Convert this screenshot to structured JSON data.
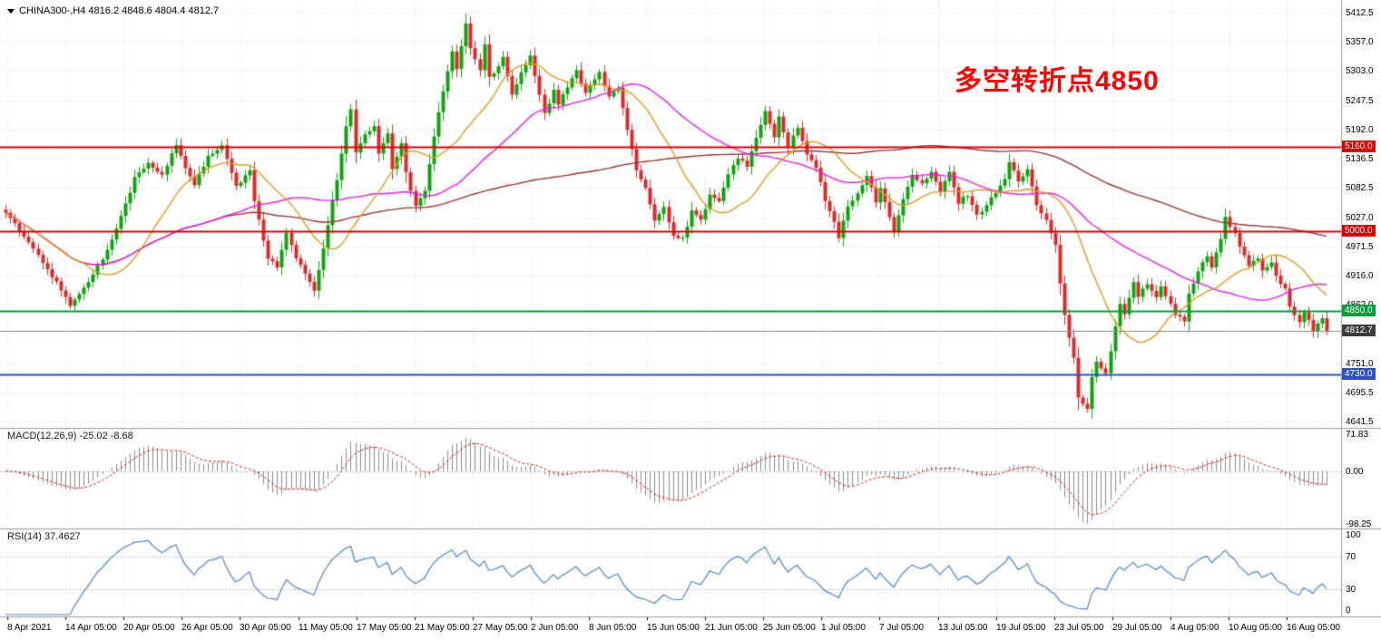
{
  "header": {
    "symbol_line": "CHINA300-,H4 4816.2 4848.6 4804.4 4812.7",
    "symbol": "CHINA300-",
    "timeframe": "H4",
    "open": "4816.2",
    "high": "4848.6",
    "low": "4804.4",
    "close": "4812.7"
  },
  "annotation": {
    "text": "多空转折点4850",
    "color": "#FF0000"
  },
  "price_axis": {
    "ticks": [
      "5412.5",
      "5357.0",
      "5303.0",
      "5247.5",
      "5192.0",
      "5136.5",
      "5082.5",
      "5027.0",
      "4971.5",
      "4916.0",
      "4862.0",
      "4751.0",
      "4695.5",
      "4641.5"
    ],
    "grid_values": [
      5412.5,
      5357.0,
      5303.0,
      5247.5,
      5192.0,
      5136.5,
      5082.5,
      5027.0,
      4971.5,
      4916.0,
      4862.0,
      4806.5,
      4751.0,
      4695.5,
      4641.5
    ],
    "badges": [
      {
        "label": "5160.0",
        "value": 5160.0,
        "bg": "#DE0000"
      },
      {
        "label": "5000.0",
        "value": 5000.0,
        "bg": "#DE0000"
      },
      {
        "label": "4850.0",
        "value": 4850.0,
        "bg": "#00A03C"
      },
      {
        "label": "4812.7",
        "value": 4812.7,
        "bg": "#3C3C3C"
      },
      {
        "label": "4730.0",
        "value": 4730.0,
        "bg": "#2A52C8"
      }
    ]
  },
  "levels": [
    {
      "value": 5160.0,
      "color": "#DE0000",
      "width": 2
    },
    {
      "value": 5000.0,
      "color": "#DE0000",
      "width": 2
    },
    {
      "value": 4850.0,
      "color": "#00A03C",
      "width": 2
    },
    {
      "value": 4730.0,
      "color": "#2A52C8",
      "width": 2
    }
  ],
  "current_price": {
    "value": 4812.7,
    "line_color": "#8A8A8A"
  },
  "time_axis": {
    "labels": [
      "8 Apr 2021",
      "14 Apr 05:00",
      "20 Apr 05:00",
      "26 Apr 05:00",
      "30 Apr 05:00",
      "11 May 05:00",
      "17 May 05:00",
      "21 May 05:00",
      "27 May 05:00",
      "2 Jun 05:00",
      "8 Jun 05:00",
      "15 Jun 05:00",
      "21 Jun 05:00",
      "25 Jun 05:00",
      "1 Jul 05:00",
      "7 Jul 05:00",
      "13 Jul 05:00",
      "19 Jul 05:00",
      "23 Jul 05:00",
      "29 Jul 05:00",
      "4 Aug 05:00",
      "10 Aug 05:00",
      "16 Aug 05:00"
    ]
  },
  "macd_panel": {
    "label": "MACD(12,26,9) -25.02 -8.68",
    "name": "MACD",
    "params": "12,26,9",
    "main_value": -25.02,
    "signal_value": -8.68,
    "ticks": [
      "71.83",
      "0.00",
      "-98.25"
    ],
    "tick_values": [
      71.83,
      0.0,
      -98.25
    ],
    "histogram_color": "#8C8C8C",
    "signal_color": "#CC2222"
  },
  "rsi_panel": {
    "label": "RSI(14) 37.4627",
    "name": "RSI",
    "period": 14,
    "value": 37.4627,
    "ticks": [
      "100",
      "70",
      "30",
      "0"
    ],
    "tick_values": [
      100,
      70,
      30,
      0
    ],
    "level_lines": [
      70,
      30
    ],
    "line_color": "#4C86C8"
  },
  "chart_data": {
    "type": "candlestick",
    "symbol": "CHINA300-",
    "timeframe": "H4",
    "title": "CHINA300- H4 candlestick chart with MACD(12,26,9) and RSI(14) panels",
    "x_start": "8 Apr 2021",
    "x_end": "17 Aug 2021",
    "price_axis_range": [
      4641.5,
      5412.5
    ],
    "last_ohlc": {
      "open": 4816.2,
      "high": 4848.6,
      "low": 4804.4,
      "close": 4812.7
    },
    "up_color": "#0FA50F",
    "down_color": "#DE2A2A",
    "horizontal_levels": [
      5160.0,
      5000.0,
      4850.0,
      4730.0
    ],
    "close_keypoints": [
      [
        0,
        5035
      ],
      [
        4,
        4990
      ],
      [
        9,
        4930
      ],
      [
        14,
        4862
      ],
      [
        17,
        4892
      ],
      [
        21,
        4948
      ],
      [
        25,
        5028
      ],
      [
        28,
        5100
      ],
      [
        31,
        5128
      ],
      [
        34,
        5105
      ],
      [
        37,
        5165
      ],
      [
        39,
        5120
      ],
      [
        41,
        5090
      ],
      [
        44,
        5140
      ],
      [
        47,
        5160
      ],
      [
        50,
        5085
      ],
      [
        53,
        5112
      ],
      [
        54,
        5058
      ],
      [
        57,
        4950
      ],
      [
        59,
        4935
      ],
      [
        61,
        4995
      ],
      [
        63,
        4950
      ],
      [
        65,
        4920
      ],
      [
        67,
        4885
      ],
      [
        68,
        4928
      ],
      [
        70,
        5012
      ],
      [
        72,
        5100
      ],
      [
        74,
        5195
      ],
      [
        75,
        5232
      ],
      [
        76,
        5148
      ],
      [
        78,
        5185
      ],
      [
        80,
        5196
      ],
      [
        81,
        5150
      ],
      [
        83,
        5186
      ],
      [
        84,
        5120
      ],
      [
        86,
        5165
      ],
      [
        87,
        5110
      ],
      [
        89,
        5048
      ],
      [
        91,
        5075
      ],
      [
        93,
        5180
      ],
      [
        95,
        5265
      ],
      [
        97,
        5338
      ],
      [
        98,
        5308
      ],
      [
        100,
        5392
      ],
      [
        101,
        5345
      ],
      [
        103,
        5305
      ],
      [
        104,
        5352
      ],
      [
        105,
        5290
      ],
      [
        107,
        5312
      ],
      [
        108,
        5332
      ],
      [
        110,
        5258
      ],
      [
        112,
        5300
      ],
      [
        114,
        5332
      ],
      [
        116,
        5258
      ],
      [
        117,
        5222
      ],
      [
        119,
        5265
      ],
      [
        120,
        5240
      ],
      [
        122,
        5272
      ],
      [
        124,
        5302
      ],
      [
        126,
        5262
      ],
      [
        128,
        5290
      ],
      [
        129,
        5302
      ],
      [
        131,
        5252
      ],
      [
        133,
        5272
      ],
      [
        135,
        5192
      ],
      [
        137,
        5112
      ],
      [
        139,
        5085
      ],
      [
        141,
        5022
      ],
      [
        143,
        5045
      ],
      [
        145,
        4995
      ],
      [
        147,
        4985
      ],
      [
        149,
        5040
      ],
      [
        151,
        5020
      ],
      [
        153,
        5070
      ],
      [
        155,
        5055
      ],
      [
        157,
        5105
      ],
      [
        159,
        5140
      ],
      [
        161,
        5125
      ],
      [
        163,
        5175
      ],
      [
        165,
        5225
      ],
      [
        167,
        5180
      ],
      [
        168,
        5215
      ],
      [
        170,
        5160
      ],
      [
        172,
        5195
      ],
      [
        174,
        5145
      ],
      [
        176,
        5120
      ],
      [
        178,
        5060
      ],
      [
        180,
        5015
      ],
      [
        181,
        4990
      ],
      [
        183,
        5045
      ],
      [
        185,
        5075
      ],
      [
        187,
        5105
      ],
      [
        189,
        5055
      ],
      [
        190,
        5080
      ],
      [
        192,
        5030
      ],
      [
        193,
        5000
      ],
      [
        195,
        5060
      ],
      [
        197,
        5105
      ],
      [
        199,
        5090
      ],
      [
        201,
        5110
      ],
      [
        203,
        5075
      ],
      [
        205,
        5110
      ],
      [
        207,
        5055
      ],
      [
        209,
        5070
      ],
      [
        211,
        5030
      ],
      [
        213,
        5050
      ],
      [
        215,
        5075
      ],
      [
        217,
        5100
      ],
      [
        218,
        5130
      ],
      [
        220,
        5095
      ],
      [
        222,
        5115
      ],
      [
        224,
        5050
      ],
      [
        226,
        5025
      ],
      [
        228,
        4975
      ],
      [
        229,
        4905
      ],
      [
        230,
        4840
      ],
      [
        232,
        4760
      ],
      [
        233,
        4690
      ],
      [
        235,
        4662
      ],
      [
        236,
        4725
      ],
      [
        237,
        4755
      ],
      [
        239,
        4730
      ],
      [
        240,
        4775
      ],
      [
        242,
        4862
      ],
      [
        243,
        4845
      ],
      [
        245,
        4905
      ],
      [
        246,
        4880
      ],
      [
        248,
        4900
      ],
      [
        250,
        4875
      ],
      [
        251,
        4895
      ],
      [
        253,
        4865
      ],
      [
        254,
        4845
      ],
      [
        256,
        4830
      ],
      [
        257,
        4885
      ],
      [
        259,
        4925
      ],
      [
        261,
        4955
      ],
      [
        262,
        4930
      ],
      [
        264,
        4985
      ],
      [
        265,
        5028
      ],
      [
        267,
        4995
      ],
      [
        268,
        4970
      ],
      [
        270,
        4935
      ],
      [
        272,
        4950
      ],
      [
        273,
        4925
      ],
      [
        275,
        4940
      ],
      [
        276,
        4915
      ],
      [
        278,
        4890
      ],
      [
        279,
        4855
      ],
      [
        281,
        4830
      ],
      [
        282,
        4850
      ],
      [
        284,
        4815
      ],
      [
        286,
        4838
      ],
      [
        287,
        4812.7
      ]
    ],
    "moving_averages": [
      {
        "name": "ma-fast",
        "color": "#DE9C1E",
        "period": 18
      },
      {
        "name": "ma-medium",
        "color": "#E81CE8",
        "period": 45
      },
      {
        "name": "ma-slow",
        "color": "#A03232",
        "period": 130
      }
    ]
  }
}
